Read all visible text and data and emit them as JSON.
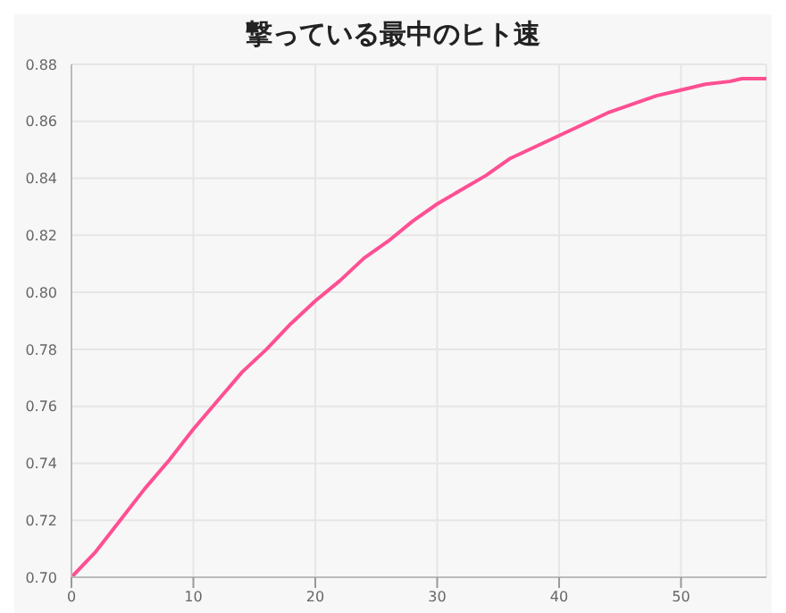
{
  "chart_data": {
    "type": "line",
    "title": "撃っている最中のヒト速",
    "x": [
      0,
      2,
      4,
      6,
      8,
      10,
      12,
      14,
      16,
      18,
      20,
      22,
      24,
      26,
      28,
      30,
      32,
      34,
      36,
      38,
      40,
      42,
      44,
      46,
      48,
      50,
      52,
      54,
      55,
      57
    ],
    "series": [
      {
        "color": "#ff4f93",
        "values": [
          0.7,
          0.709,
          0.72,
          0.731,
          0.741,
          0.752,
          0.762,
          0.772,
          0.78,
          0.789,
          0.797,
          0.804,
          0.812,
          0.818,
          0.825,
          0.831,
          0.836,
          0.841,
          0.847,
          0.851,
          0.855,
          0.859,
          0.863,
          0.866,
          0.869,
          0.871,
          0.873,
          0.874,
          0.875,
          0.875
        ]
      }
    ],
    "xlim": [
      0,
      57
    ],
    "xticks": [
      0,
      10,
      20,
      30,
      40,
      50
    ],
    "ylim": [
      0.7,
      0.88
    ],
    "yticks": [
      {
        "value": 0.7,
        "label": "0.70"
      },
      {
        "value": 0.72,
        "label": "0.72"
      },
      {
        "value": 0.74,
        "label": "0.74"
      },
      {
        "value": 0.76,
        "label": "0.76"
      },
      {
        "value": 0.78,
        "label": "0.78"
      },
      {
        "value": 0.8,
        "label": "0.80"
      },
      {
        "value": 0.82,
        "label": "0.82"
      },
      {
        "value": 0.84,
        "label": "0.84"
      },
      {
        "value": 0.86,
        "label": "0.86"
      },
      {
        "value": 0.88,
        "label": "0.88"
      }
    ],
    "grid": true,
    "legend": false,
    "marker": "none",
    "line_style": "solid"
  }
}
